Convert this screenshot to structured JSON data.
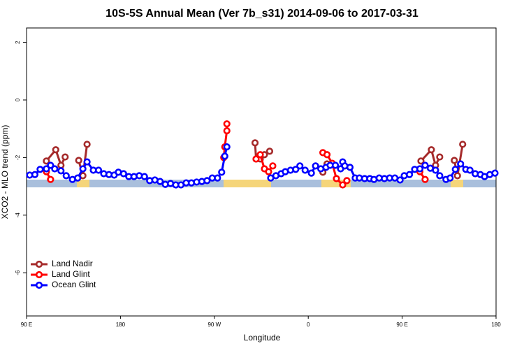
{
  "chart_data": {
    "type": "line",
    "title": "10S-5S Annual Mean (Ver 7b_s31)   2014-09-06 to 2017-03-31",
    "x_label": "Longitude",
    "y_label": "XCO2 - MLO trend (ppm)",
    "xlim": [
      90,
      540
    ],
    "ylim": [
      -7.5,
      2.5
    ],
    "xticks": [
      {
        "value": 90,
        "label": "90 E"
      },
      180,
      {
        "value": 270,
        "label": "90 W"
      },
      {
        "value": 360,
        "label": "0"
      },
      {
        "value": 450,
        "label": "90 E"
      },
      {
        "value": 540,
        "label": "180"
      }
    ],
    "yticks": [
      2,
      0,
      -2,
      -4,
      -6
    ],
    "legend": "bottom-left",
    "series": [
      {
        "name": "Land Nadir",
        "color": "#a52a2a",
        "x": [
          109,
          118,
          123,
          127,
          null,
          140,
          144,
          148,
          null,
          309,
          310,
          314,
          318,
          323,
          null,
          374,
          378,
          null,
          468,
          478,
          482,
          486,
          null,
          500,
          503,
          508
        ],
        "values": [
          -2.12,
          -1.73,
          -2.27,
          -1.98,
          null,
          -2.1,
          -2.63,
          -1.54,
          null,
          -1.49,
          -2.05,
          -2.05,
          -1.9,
          -1.78,
          null,
          -2.51,
          -2.22,
          null,
          -2.12,
          -1.73,
          -2.27,
          -1.98,
          null,
          -2.1,
          -2.63,
          -1.54
        ]
      },
      {
        "name": "Land Glint",
        "color": "#ff0000",
        "x": [
          109,
          113,
          null,
          279,
          280,
          282,
          282,
          null,
          310,
          314,
          318,
          322,
          326,
          null,
          374,
          378,
          383,
          387,
          393,
          397,
          null,
          467,
          472
        ],
        "values": [
          -2.49,
          -2.76,
          null,
          -2.0,
          -1.63,
          -1.07,
          -0.83,
          null,
          -2.05,
          -1.9,
          -2.39,
          -2.49,
          -2.29,
          null,
          -1.83,
          -1.9,
          -2.2,
          -2.73,
          -2.95,
          -2.8,
          null,
          -2.49,
          -2.76
        ]
      },
      {
        "name": "Ocean Glint",
        "color": "#0000ff",
        "x": [
          93,
          98,
          103,
          109,
          113,
          117,
          123,
          128,
          134,
          139,
          144,
          148,
          154,
          159,
          164,
          169,
          174,
          178,
          183,
          188,
          193,
          198,
          203,
          208,
          213,
          218,
          223,
          228,
          233,
          238,
          243,
          248,
          253,
          258,
          263,
          268,
          273,
          277,
          280,
          282,
          null,
          324,
          329,
          334,
          338,
          343,
          348,
          352,
          357,
          363,
          367,
          372,
          377,
          381,
          386,
          391,
          393,
          395,
          400,
          405,
          409,
          414,
          419,
          423,
          428,
          433,
          438,
          443,
          448,
          452,
          457,
          462,
          467,
          472,
          477,
          482,
          486,
          492,
          496,
          501,
          506,
          511,
          515,
          520,
          525,
          529,
          534,
          539
        ],
        "values": [
          -2.61,
          -2.59,
          -2.41,
          -2.39,
          -2.27,
          -2.39,
          -2.46,
          -2.63,
          -2.76,
          -2.71,
          -2.39,
          -2.15,
          -2.44,
          -2.44,
          -2.56,
          -2.59,
          -2.61,
          -2.51,
          -2.56,
          -2.66,
          -2.66,
          -2.63,
          -2.66,
          -2.8,
          -2.78,
          -2.83,
          -2.93,
          -2.9,
          -2.95,
          -2.95,
          -2.88,
          -2.88,
          -2.85,
          -2.83,
          -2.8,
          -2.71,
          -2.71,
          -2.51,
          -1.95,
          -1.63,
          null,
          -2.71,
          -2.63,
          -2.56,
          -2.49,
          -2.44,
          -2.41,
          -2.29,
          -2.44,
          -2.54,
          -2.29,
          -2.39,
          -2.34,
          -2.27,
          -2.27,
          -2.39,
          -2.15,
          -2.29,
          -2.34,
          -2.71,
          -2.71,
          -2.73,
          -2.73,
          -2.76,
          -2.71,
          -2.73,
          -2.71,
          -2.71,
          -2.78,
          -2.63,
          -2.59,
          -2.41,
          -2.39,
          -2.27,
          -2.37,
          -2.44,
          -2.63,
          -2.76,
          -2.71,
          -2.41,
          -2.22,
          -2.41,
          -2.44,
          -2.56,
          -2.59,
          -2.66,
          -2.59,
          -2.54
        ]
      }
    ]
  }
}
